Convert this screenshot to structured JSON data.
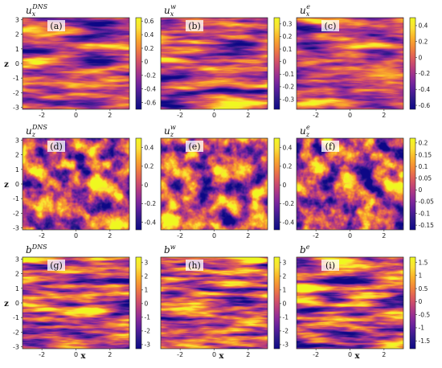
{
  "chart_data": {
    "type": "heatmap",
    "colormap": [
      "#0d0887",
      "#2c1a8a",
      "#5a1e9c",
      "#8a2a9a",
      "#b73d7e",
      "#dd5a5c",
      "#f2843a",
      "#fab02a",
      "#fbe036",
      "#f0f921"
    ],
    "grid": "off",
    "xlabel": "x",
    "ylabel": "z",
    "xlim": [
      -3.14,
      3.14
    ],
    "ylim": [
      -3.14,
      3.14
    ],
    "x_ticks": [
      -2,
      0,
      2
    ],
    "y_ticks": [
      3,
      2,
      1,
      0,
      -1,
      -2,
      -3
    ],
    "panels": [
      {
        "tag": "(a)",
        "var": "u",
        "sub": "x",
        "sup": "DNS",
        "cbar_ticks": [
          "0.6",
          "0.4",
          "0.2",
          "0",
          "-0.2",
          "-0.4",
          "-0.6"
        ],
        "cbar_range": [
          -0.7,
          0.65
        ],
        "row": 0,
        "col": 0
      },
      {
        "tag": "(b)",
        "var": "u",
        "sub": "x",
        "sup": "w",
        "cbar_ticks": [
          "0.3",
          "0.2",
          "0.1",
          "0",
          "-0.1",
          "-0.2",
          "-0.3"
        ],
        "cbar_range": [
          -0.38,
          0.35
        ],
        "row": 0,
        "col": 1
      },
      {
        "tag": "(c)",
        "var": "u",
        "sub": "x",
        "sup": "e",
        "cbar_ticks": [
          "0.4",
          "0.2",
          "0",
          "-0.2",
          "-0.4",
          "-0.6"
        ],
        "cbar_range": [
          -0.65,
          0.5
        ],
        "row": 0,
        "col": 2
      },
      {
        "tag": "(d)",
        "var": "u",
        "sub": "z",
        "sup": "DNS",
        "cbar_ticks": [
          "0.4",
          "0.2",
          "0",
          "-0.2",
          "-0.4"
        ],
        "cbar_range": [
          -0.48,
          0.5
        ],
        "row": 1,
        "col": 0
      },
      {
        "tag": "(e)",
        "var": "u",
        "sub": "z",
        "sup": "w",
        "cbar_ticks": [
          "0.4",
          "0.2",
          "0",
          "-0.2",
          "-0.4"
        ],
        "cbar_range": [
          -0.48,
          0.5
        ],
        "row": 1,
        "col": 1
      },
      {
        "tag": "(f)",
        "var": "u",
        "sub": "z",
        "sup": "e",
        "cbar_ticks": [
          "0.2",
          "0.15",
          "0.1",
          "0.05",
          "0",
          "-0.05",
          "-0.1",
          "-0.15"
        ],
        "cbar_range": [
          -0.17,
          0.22
        ],
        "row": 1,
        "col": 2
      },
      {
        "tag": "(g)",
        "var": "b",
        "sub": "",
        "sup": "DNS",
        "cbar_ticks": [
          "3",
          "2",
          "1",
          "0",
          "-1",
          "-2",
          "-3"
        ],
        "cbar_range": [
          -3.3,
          3.4
        ],
        "row": 2,
        "col": 0
      },
      {
        "tag": "(h)",
        "var": "b",
        "sub": "",
        "sup": "w",
        "cbar_ticks": [
          "3",
          "2",
          "1",
          "0",
          "-1",
          "-2",
          "-3"
        ],
        "cbar_range": [
          -3.3,
          3.4
        ],
        "row": 2,
        "col": 1
      },
      {
        "tag": "(i)",
        "var": "b",
        "sub": "",
        "sup": "e",
        "cbar_ticks": [
          "1.5",
          "1",
          "0.5",
          "0",
          "-0.5",
          "-1",
          "-1.5"
        ],
        "cbar_range": [
          -1.8,
          1.7
        ],
        "row": 2,
        "col": 2
      }
    ]
  }
}
